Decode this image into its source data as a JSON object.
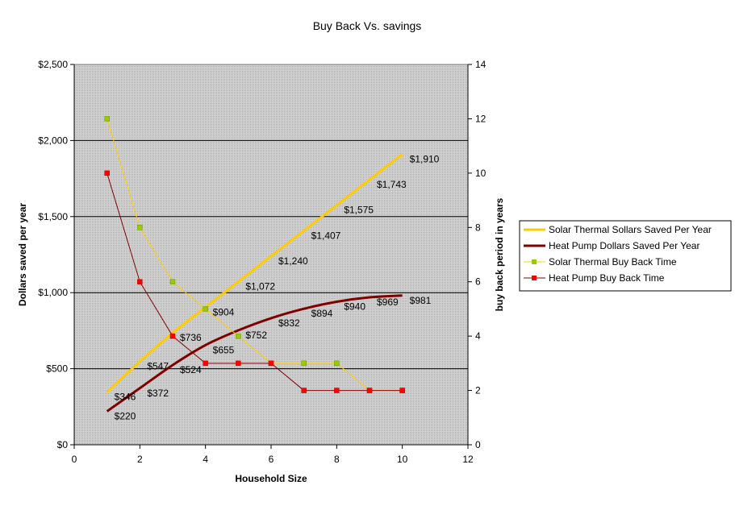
{
  "chart_data": {
    "type": "line",
    "title": "Buy Back Vs. savings",
    "xlabel": "Household Size",
    "ylabel": "Dollars saved per year",
    "y2label": "buy back period in years",
    "xlim": [
      0,
      12
    ],
    "ylim": [
      0,
      2500
    ],
    "y2lim": [
      0,
      14
    ],
    "x_ticks": [
      "0",
      "2",
      "4",
      "6",
      "8",
      "10",
      "12"
    ],
    "y_ticks": [
      "$0",
      "$500",
      "$1,000",
      "$1,500",
      "$2,000",
      "$2,500"
    ],
    "y2_ticks": [
      "0",
      "2",
      "4",
      "6",
      "8",
      "10",
      "12",
      "14"
    ],
    "grid": true,
    "legend_position": "right",
    "x": [
      1,
      2,
      3,
      4,
      5,
      6,
      7,
      8,
      9,
      10
    ],
    "series": [
      {
        "name": "Solar Thermal Sollars Saved Per Year",
        "axis": "left",
        "color": "#ffcc00",
        "values": [
          346,
          547,
          736,
          904,
          1072,
          1240,
          1407,
          1575,
          1743,
          1910
        ],
        "labels": [
          "$346",
          "$547",
          "$736",
          "$904",
          "$1,072",
          "$1,240",
          "$1,407",
          "$1,575",
          "$1,743",
          "$1,910"
        ]
      },
      {
        "name": "Heat Pump Dollars Saved Per Year",
        "axis": "left",
        "color": "#800000",
        "values": [
          220,
          372,
          524,
          655,
          752,
          832,
          894,
          940,
          969,
          981
        ],
        "labels": [
          "$220",
          "$372",
          "$524",
          "$655",
          "$752",
          "$832",
          "$894",
          "$940",
          "$969",
          "$981"
        ]
      },
      {
        "name": "Solar Thermal Buy Back Time",
        "axis": "right",
        "color": "#ffcc00",
        "marker_color": "#99cc00",
        "values": [
          12,
          8,
          6,
          5,
          4,
          3,
          3,
          3,
          2,
          2
        ]
      },
      {
        "name": "Heat Pump Buy Back Time",
        "axis": "right",
        "color": "#800000",
        "marker_color": "#ff0000",
        "values": [
          10,
          6,
          4,
          3,
          3,
          3,
          2,
          2,
          2,
          2
        ]
      }
    ]
  }
}
